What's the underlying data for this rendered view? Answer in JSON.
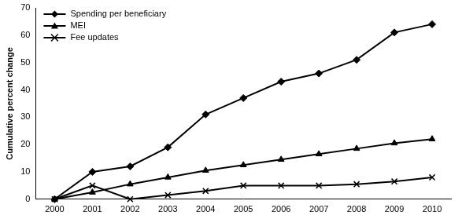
{
  "chart_data": {
    "type": "line",
    "y_label": "Cumulative percent change",
    "categories": [
      "2000",
      "2001",
      "2002",
      "2003",
      "2004",
      "2005",
      "2006",
      "2007",
      "2008",
      "2009",
      "2010"
    ],
    "series": [
      {
        "name": "Spending per beneficiary",
        "color": "#000000",
        "marker": "diamond",
        "values": [
          0,
          10,
          12,
          19,
          31,
          37,
          43,
          46,
          51,
          61,
          64
        ]
      },
      {
        "name": "MEI",
        "color": "#000000",
        "marker": "triangle",
        "values": [
          0,
          2.5,
          5.5,
          8,
          10.5,
          12.5,
          14.5,
          16.5,
          18.5,
          20.5,
          22
        ]
      },
      {
        "name": "Fee updates",
        "color": "#000000",
        "marker": "x",
        "values": [
          0,
          5,
          0,
          1.5,
          3,
          5,
          5,
          5,
          5.5,
          6.5,
          8
        ]
      }
    ],
    "ylim": [
      0,
      70
    ],
    "yticks": [
      0,
      10,
      20,
      30,
      40,
      50,
      60,
      70
    ],
    "grid": false,
    "legend": "top-left"
  }
}
